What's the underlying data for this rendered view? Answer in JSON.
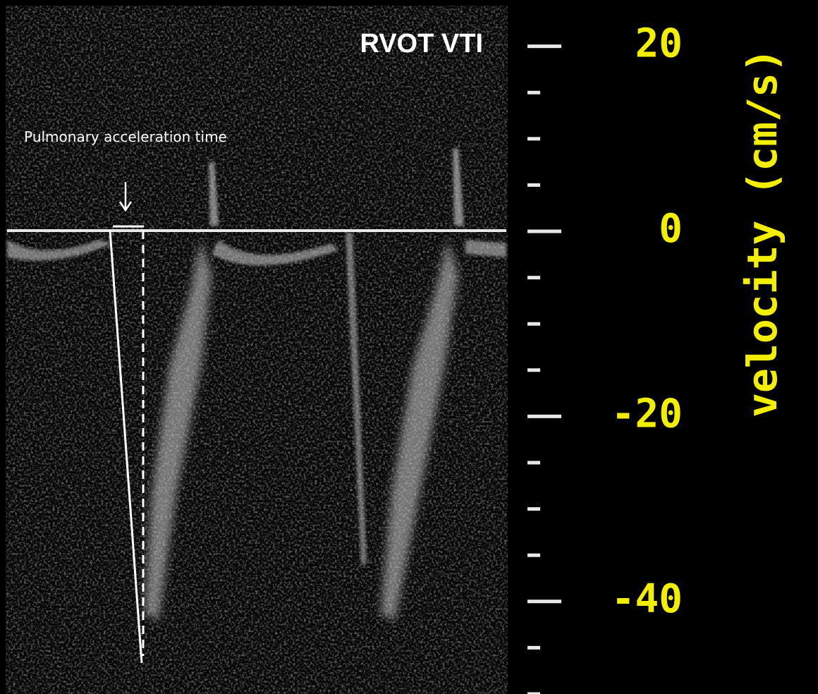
{
  "title": "RVOT VTI",
  "annotation": "Pulmonary acceleration time",
  "axis": {
    "label": "velocity (cm/s)",
    "ylim": [
      25,
      -50
    ],
    "yticks": [
      20,
      0,
      -20,
      -40
    ]
  }
}
